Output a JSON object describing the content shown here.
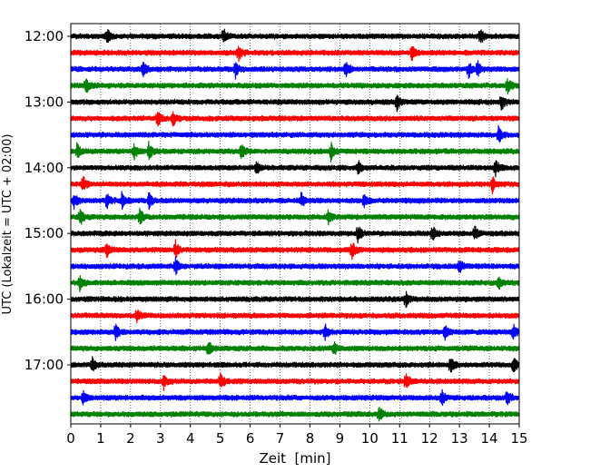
{
  "chart_data": {
    "type": "line",
    "title": "",
    "xlabel": "Zeit  [min]",
    "ylabel": "UTC (Lokalzeit = UTC + 02:00)",
    "xlim": [
      0,
      15
    ],
    "x_ticks": [
      0,
      1,
      2,
      3,
      4,
      5,
      6,
      7,
      8,
      9,
      10,
      11,
      12,
      13,
      14,
      15
    ],
    "y_tick_labels": [
      "12:00",
      "13:00",
      "14:00",
      "15:00",
      "16:00",
      "17:00"
    ],
    "trace_interval_min": 15,
    "grid": "vertical dotted lines at each minute",
    "colors": [
      "#000000",
      "#ff0000",
      "#0000ff",
      "#008000"
    ],
    "traces": [
      {
        "start": "12:00",
        "events": [
          1.2,
          5.1,
          13.7
        ]
      },
      {
        "start": "12:15",
        "events": [
          5.6,
          11.4
        ]
      },
      {
        "start": "12:30",
        "events": [
          2.4,
          5.5,
          9.2,
          13.3,
          13.6
        ]
      },
      {
        "start": "12:45",
        "events": [
          0.5,
          14.6
        ]
      },
      {
        "start": "13:00",
        "events": [
          10.9,
          14.4
        ]
      },
      {
        "start": "13:15",
        "events": [
          2.9,
          3.4
        ]
      },
      {
        "start": "13:30",
        "events": [
          14.3
        ]
      },
      {
        "start": "13:45",
        "events": [
          0.2,
          2.1,
          2.6,
          5.7,
          8.7
        ]
      },
      {
        "start": "14:00",
        "events": [
          6.2,
          9.6,
          14.2
        ]
      },
      {
        "start": "14:15",
        "events": [
          0.4,
          14.1
        ]
      },
      {
        "start": "14:30",
        "events": [
          0.1,
          1.2,
          1.7,
          2.6,
          7.7,
          9.8
        ]
      },
      {
        "start": "14:45",
        "events": [
          0.3,
          2.3,
          8.6
        ]
      },
      {
        "start": "15:00",
        "events": [
          9.6,
          12.1,
          13.5
        ]
      },
      {
        "start": "15:15",
        "events": [
          1.2,
          3.5,
          9.4
        ]
      },
      {
        "start": "15:30",
        "events": [
          3.5,
          13.0
        ]
      },
      {
        "start": "15:45",
        "events": [
          0.3,
          14.3
        ]
      },
      {
        "start": "16:00",
        "events": [
          11.2
        ]
      },
      {
        "start": "16:15",
        "events": [
          2.2
        ]
      },
      {
        "start": "16:30",
        "events": [
          1.5,
          8.5,
          12.5,
          14.8
        ]
      },
      {
        "start": "16:45",
        "events": [
          4.6,
          8.8
        ]
      },
      {
        "start": "17:00",
        "events": [
          0.7,
          12.7,
          14.8
        ]
      },
      {
        "start": "17:15",
        "events": [
          3.1,
          5.0,
          11.2
        ]
      },
      {
        "start": "17:30",
        "events": [
          0.4,
          12.4,
          14.6
        ]
      },
      {
        "start": "17:45",
        "events": [
          10.3
        ]
      }
    ]
  }
}
